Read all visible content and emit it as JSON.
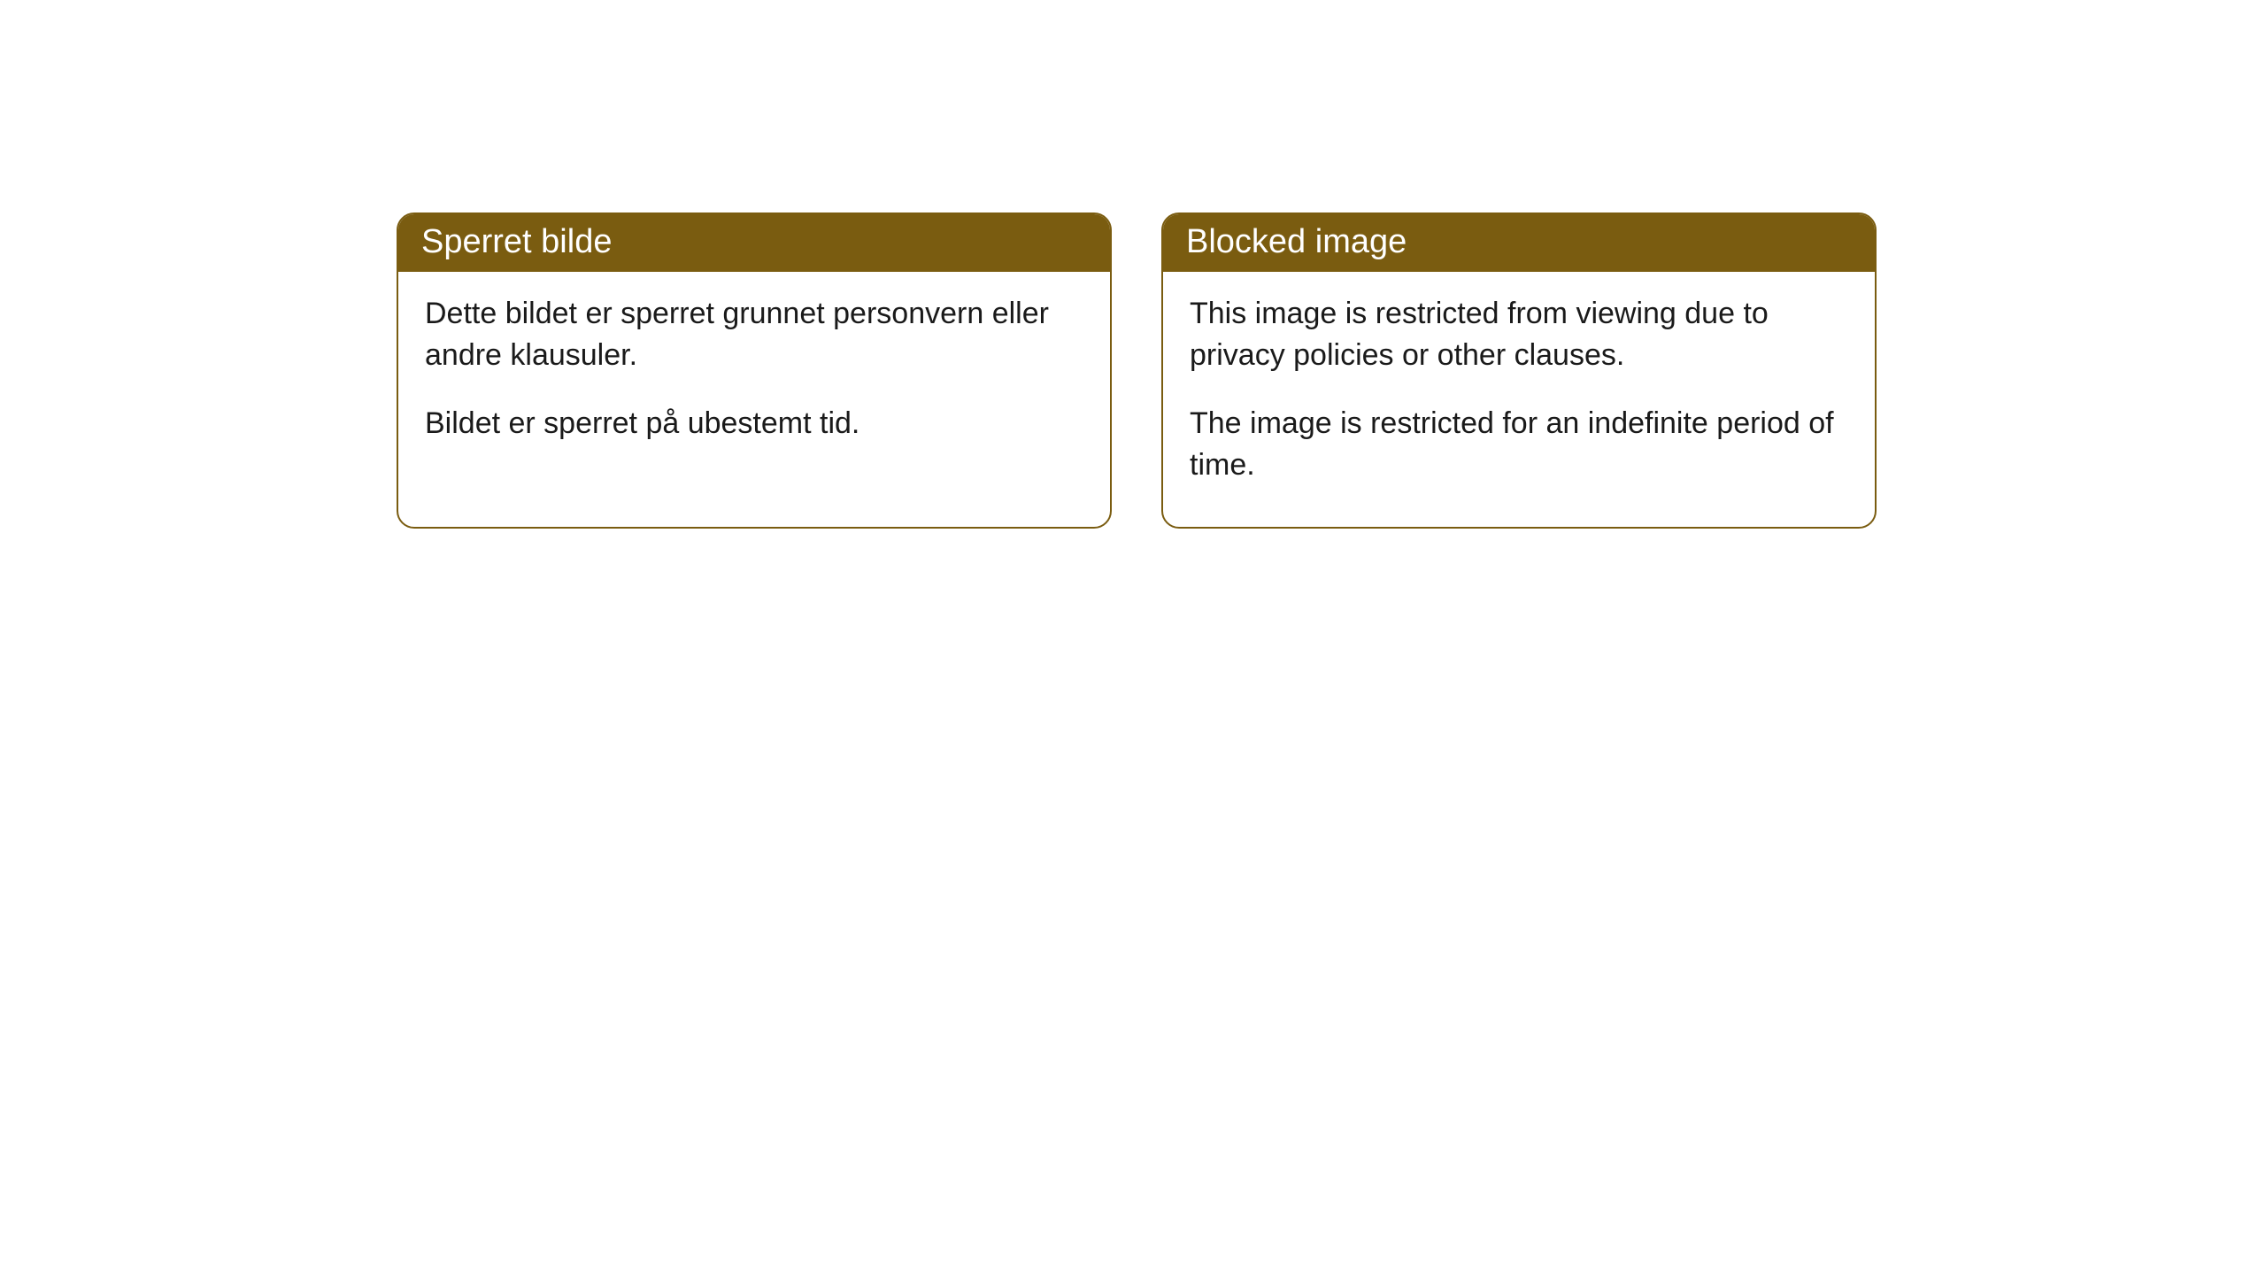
{
  "cards": [
    {
      "title": "Sperret bilde",
      "paragraph1": "Dette bildet er sperret grunnet personvern eller andre klausuler.",
      "paragraph2": "Bildet er sperret på ubestemt tid."
    },
    {
      "title": "Blocked image",
      "paragraph1": "This image is restricted from viewing due to privacy policies or other clauses.",
      "paragraph2": "The image is restricted for an indefinite period of time."
    }
  ],
  "styling": {
    "header_background": "#7a5c10",
    "header_text_color": "#ffffff",
    "border_color": "#7a5c10",
    "body_text_color": "#1a1a1a",
    "background_color": "#ffffff",
    "border_radius": 20,
    "title_fontsize": 38,
    "body_fontsize": 34
  }
}
